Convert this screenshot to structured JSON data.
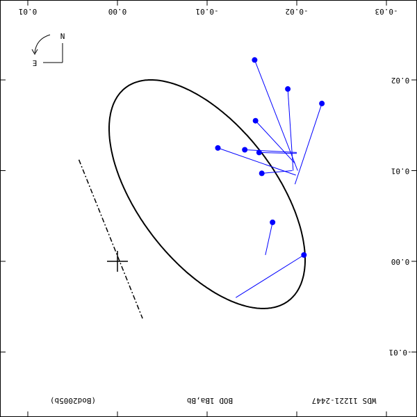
{
  "chart_data": {
    "type": "scatter",
    "title": "",
    "xlabel": "",
    "ylabel": "",
    "notes": {
      "system": "WDS 11221-2447",
      "pair": "BOD    1Ba,Bb",
      "reference": "(Bod2005b)"
    },
    "compass": {
      "north": "N",
      "east": "E"
    },
    "x_ticks": [
      {
        "value": 0.01,
        "label": "0.01"
      },
      {
        "value": 0.0,
        "label": "0.00"
      },
      {
        "value": -0.01,
        "label": "-0.01"
      },
      {
        "value": -0.02,
        "label": "-0.02"
      },
      {
        "value": -0.03,
        "label": "-0.03"
      }
    ],
    "y_ticks": [
      {
        "value": 0.02,
        "label": "0.02"
      },
      {
        "value": 0.01,
        "label": "0.01"
      },
      {
        "value": 0.0,
        "label": "0.00"
      },
      {
        "value": -0.01,
        "label": "-0.01"
      }
    ],
    "xlim": [
      0.01,
      -0.03
    ],
    "ylim": [
      -0.017,
      0.026
    ],
    "orbit": {
      "center": [
        -0.01,
        0.0074
      ],
      "semi_axes": [
        0.01485,
        0.0076
      ],
      "rotation_deg": 52,
      "color": "#000000"
    },
    "primary": {
      "x": 0.0,
      "y": 0.0
    },
    "line_of_nodes": [
      [
        0.0043,
        0.0112
      ],
      [
        -0.0028,
        -0.0063
      ]
    ],
    "observations": [
      {
        "x": -0.0153,
        "y": 0.0222,
        "ox": -0.0201,
        "oy": 0.01
      },
      {
        "x": -0.019,
        "y": 0.019,
        "ox": -0.0196,
        "oy": 0.01
      },
      {
        "x": -0.0228,
        "y": 0.0174,
        "ox": -0.0198,
        "oy": 0.0085
      },
      {
        "x": -0.0154,
        "y": 0.0155,
        "ox": -0.0198,
        "oy": 0.0108
      },
      {
        "x": -0.0112,
        "y": 0.0125,
        "ox": -0.0199,
        "oy": 0.0095
      },
      {
        "x": -0.0142,
        "y": 0.0123,
        "ox": -0.02,
        "oy": 0.012
      },
      {
        "x": -0.0158,
        "y": 0.012,
        "ox": -0.02,
        "oy": 0.0119
      },
      {
        "x": -0.0161,
        "y": 0.0097,
        "ox": -0.0195,
        "oy": 0.01
      },
      {
        "x": -0.0173,
        "y": 0.0043,
        "ox": -0.0165,
        "oy": 0.0007
      },
      {
        "x": -0.0208,
        "y": 0.0007,
        "ox": -0.0132,
        "oy": -0.004
      }
    ],
    "point_color": "#0000ff",
    "residual_color": "#0000ff"
  }
}
